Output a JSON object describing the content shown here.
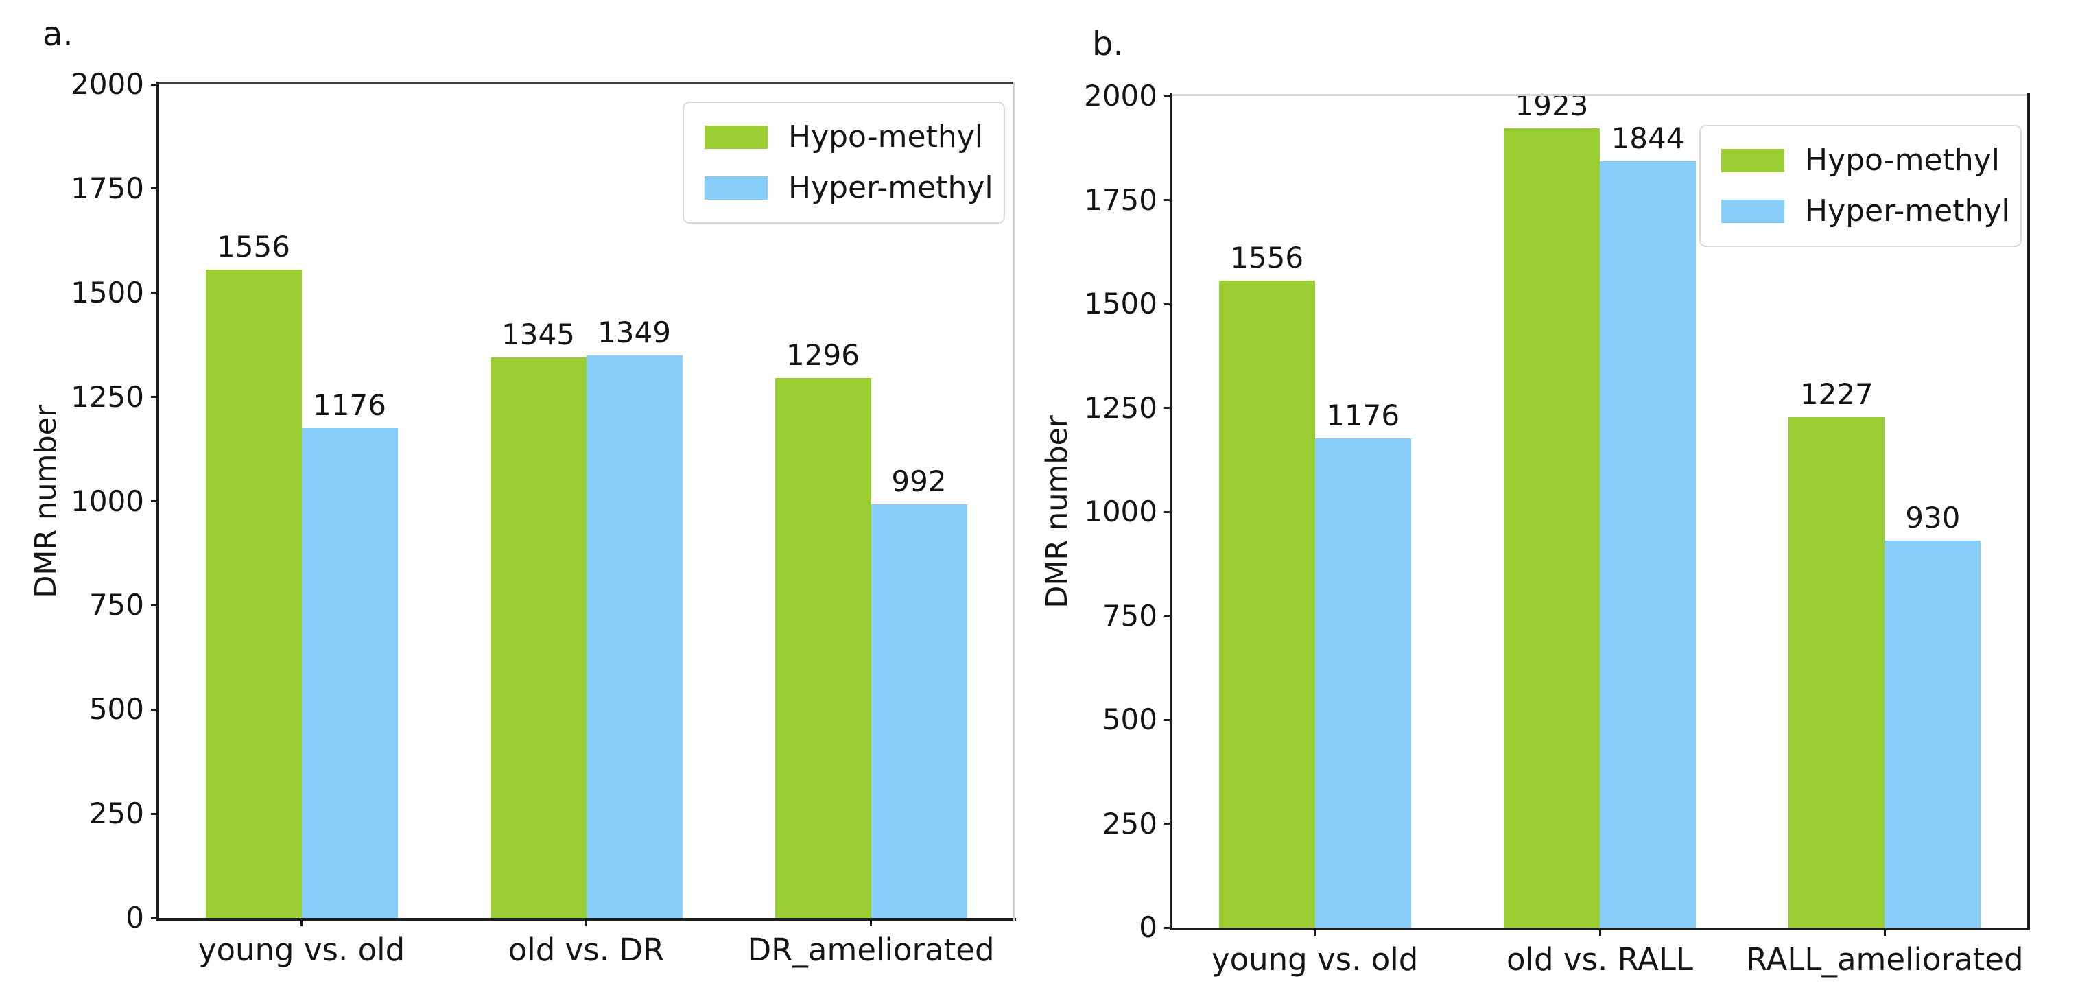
{
  "figure": {
    "background": "#ffffff",
    "panel_letters": [
      "a.",
      "b."
    ]
  },
  "chart_data": [
    {
      "id": "a",
      "type": "bar",
      "panel_label": "a.",
      "title": "",
      "xlabel": "",
      "ylabel": "DMR number",
      "ylim": [
        0,
        2000
      ],
      "yticks": [
        0,
        250,
        500,
        750,
        1000,
        1250,
        1500,
        1750,
        2000
      ],
      "grid": false,
      "legend_position": "upper right",
      "bar_value_labels": true,
      "categories": [
        "young vs. old",
        "old vs. DR",
        "DR_ameliorated"
      ],
      "series": [
        {
          "name": "Hypo-methyl",
          "color": "#9ACD32",
          "values": [
            1556,
            1345,
            1296
          ]
        },
        {
          "name": "Hyper-methyl",
          "color": "#87CEFA",
          "values": [
            1176,
            1349,
            992
          ]
        }
      ]
    },
    {
      "id": "b",
      "type": "bar",
      "panel_label": "b.",
      "title": "",
      "xlabel": "",
      "ylabel": "DMR number",
      "ylim": [
        0,
        2000
      ],
      "yticks": [
        0,
        250,
        500,
        750,
        1000,
        1250,
        1500,
        1750,
        2000
      ],
      "grid": false,
      "legend_position": "upper right",
      "bar_value_labels": true,
      "categories": [
        "young vs. old",
        "old vs. RALL",
        "RALL_ameliorated"
      ],
      "series": [
        {
          "name": "Hypo-methyl",
          "color": "#9ACD32",
          "values": [
            1556,
            1923,
            1227
          ]
        },
        {
          "name": "Hyper-methyl",
          "color": "#87CEFA",
          "values": [
            1176,
            1844,
            930
          ]
        }
      ]
    }
  ]
}
